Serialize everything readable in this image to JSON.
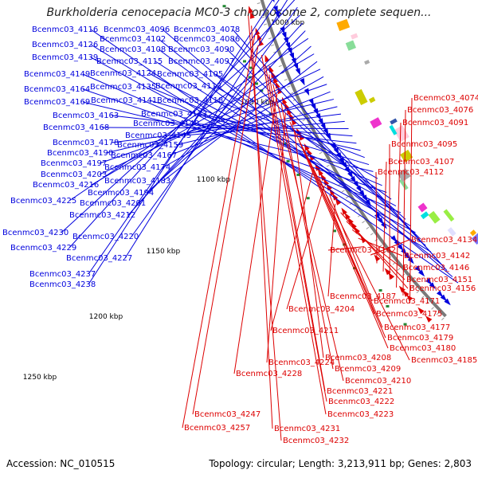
{
  "title": "Burkholderia cenocepacia MC0-3 chromosome 2, complete sequen...",
  "footer": {
    "accession": "Accession: NC_010515",
    "summary": "Topology: circular; Length: 3,213,911 bp; Genes: 2,803"
  },
  "colors": {
    "forward": "#0000dd",
    "reverse": "#dd0000",
    "backbone": "#7a7a7a",
    "tick": "#000000"
  },
  "scale_ticks": [
    "1000 kbp",
    "1050 kbp",
    "1100 kbp",
    "1150 kbp",
    "1200 kbp",
    "1250 kbp"
  ],
  "left_labels": [
    "Bcenmc03_4116",
    "Bcenmc03_4096",
    "Bcenmc03_4078",
    "Bcenmc03_4102",
    "Bcenmc03_4086",
    "Bcenmc03_4126",
    "Bcenmc03_4108",
    "Bcenmc03_4090",
    "Bcenmc03_4139",
    "Bcenmc03_4115",
    "Bcenmc03_4097",
    "Bcenmc03_4149",
    "Bcenmc03_4124",
    "Bcenmc03_4105",
    "Bcenmc03_4164",
    "Bcenmc03_4135",
    "Bcenmc03_4113",
    "Bcenmc03_4169",
    "Bcenmc03_4141",
    "Bcenmc03_4118",
    "Bcenmc03_4133",
    "Bcenmc03_4163",
    "Bcenmc03_4140",
    "Bcenmc03_4168",
    "Bcenmc03_4145",
    "Bcenmc03_4178",
    "Bcenmc03_4159",
    "Bcenmc03_4190",
    "Bcenmc03_4167",
    "Bcenmc03_4197",
    "Bcenmc03_4174",
    "Bcenmc03_4203",
    "Bcenmc03_4183",
    "Bcenmc03_4216",
    "Bcenmc03_4194",
    "Bcenmc03_4225",
    "Bcenmc03_4201",
    "Bcenmc03_4212",
    "Bcenmc03_4230",
    "Bcenmc03_4220",
    "Bcenmc03_4229",
    "Bcenmc03_4227",
    "Bcenmc03_4237",
    "Bcenmc03_4238"
  ],
  "right_labels": [
    "Bcenmc03_4074",
    "Bcenmc03_4076",
    "Bcenmc03_4091",
    "Bcenmc03_4095",
    "Bcenmc03_4107",
    "Bcenmc03_4112",
    "Bcenmc03_4134",
    "Bcenmc03_4162",
    "Bcenmc03_4142",
    "Bcenmc03_4146",
    "Bcenmc03_4151",
    "Bcenmc03_4156",
    "Bcenmc03_4187",
    "Bcenmc03_4171",
    "Bcenmc03_4204",
    "Bcenmc03_4175",
    "Bcenmc03_4211",
    "Bcenmc03_4177",
    "Bcenmc03_4179",
    "Bcenmc03_4180",
    "Bcenmc03_4208",
    "Bcenmc03_4185",
    "Bcenmc03_4224",
    "Bcenmc03_4209",
    "Bcenmc03_4228",
    "Bcenmc03_4210",
    "Bcenmc03_4221",
    "Bcenmc03_4222",
    "Bcenmc03_4223",
    "Bcenmc03_4247",
    "Bcenmc03_4257",
    "Bcenmc03_4231",
    "Bcenmc03_4232"
  ]
}
